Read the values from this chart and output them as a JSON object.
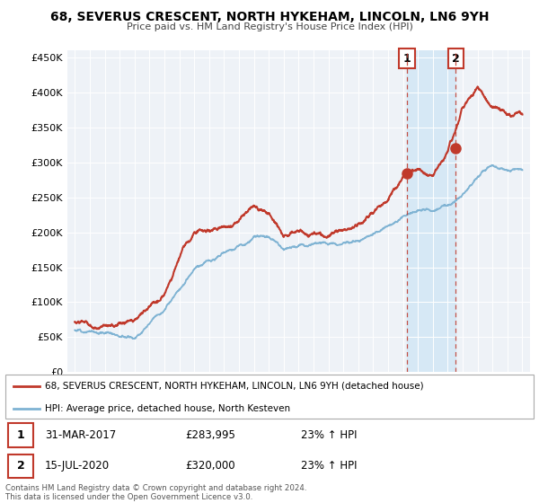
{
  "title": "68, SEVERUS CRESCENT, NORTH HYKEHAM, LINCOLN, LN6 9YH",
  "subtitle": "Price paid vs. HM Land Registry's House Price Index (HPI)",
  "legend_line1": "68, SEVERUS CRESCENT, NORTH HYKEHAM, LINCOLN, LN6 9YH (detached house)",
  "legend_line2": "HPI: Average price, detached house, North Kesteven",
  "footer1": "Contains HM Land Registry data © Crown copyright and database right 2024.",
  "footer2": "This data is licensed under the Open Government Licence v3.0.",
  "annotation1": {
    "num": "1",
    "date": "31-MAR-2017",
    "price": "£283,995",
    "pct": "23% ↑ HPI"
  },
  "annotation2": {
    "num": "2",
    "date": "15-JUL-2020",
    "price": "£320,000",
    "pct": "23% ↑ HPI"
  },
  "vline1_x": 2017.25,
  "vline2_x": 2020.54,
  "dot1_x": 2017.25,
  "dot1_y": 283995,
  "dot2_x": 2020.54,
  "dot2_y": 320000,
  "red_color": "#c0392b",
  "blue_color": "#7fb3d3",
  "blue_fill_color": "#d6e8f5",
  "background_color": "#eef2f7",
  "ylim": [
    0,
    460000
  ],
  "xlim": [
    1994.5,
    2025.5
  ],
  "blue_key_years": [
    1995,
    1997,
    1999,
    2001,
    2002,
    2003,
    2004,
    2005,
    2006,
    2007,
    2008,
    2009,
    2010,
    2011,
    2012,
    2013,
    2014,
    2015,
    2016,
    2017,
    2018,
    2019,
    2020,
    2021,
    2022,
    2023,
    2024,
    2025
  ],
  "blue_key_vals": [
    60000,
    62000,
    65000,
    100000,
    130000,
    155000,
    170000,
    180000,
    185000,
    195000,
    190000,
    170000,
    178000,
    180000,
    178000,
    182000,
    192000,
    200000,
    215000,
    228000,
    238000,
    235000,
    248000,
    268000,
    290000,
    308000,
    302000,
    303000
  ],
  "red_key_years": [
    1995,
    1997,
    1999,
    2001,
    2002,
    2003,
    2004,
    2005,
    2006,
    2007,
    2008,
    2009,
    2010,
    2011,
    2012,
    2013,
    2014,
    2015,
    2016,
    2017,
    2018,
    2019,
    2020,
    2021,
    2022,
    2023,
    2024,
    2025
  ],
  "red_key_vals": [
    72000,
    70000,
    72000,
    115000,
    165000,
    210000,
    220000,
    230000,
    230000,
    245000,
    235000,
    205000,
    215000,
    215000,
    215000,
    215000,
    228000,
    238000,
    255000,
    283995,
    295000,
    283000,
    320000,
    380000,
    398000,
    370000,
    362000,
    368000
  ]
}
